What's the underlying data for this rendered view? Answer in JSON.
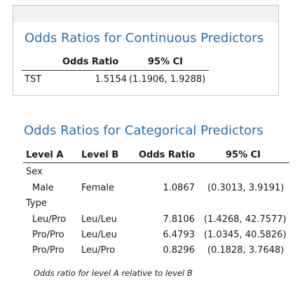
{
  "continuous": {
    "title": "Odds Ratios for Continuous Predictors",
    "headers": [
      "Odds Ratio",
      "95% CI"
    ],
    "rows": [
      {
        "predictor": "TST",
        "odds_ratio": "1.5154",
        "ci": "(1.1906, 1.9288)"
      }
    ]
  },
  "categorical": {
    "title": "Odds Ratios for Categorical Predictors",
    "headers": [
      "Level A",
      "Level B",
      "Odds Ratio",
      "95% CI"
    ],
    "groups": [
      {
        "name": "Sex",
        "rows": [
          {
            "level_a": "Male",
            "level_b": "Female",
            "odds_ratio": "1.0867",
            "ci": "(0.3013, 3.9191)"
          }
        ]
      },
      {
        "name": "Type",
        "rows": [
          {
            "level_a": "Leu/Pro",
            "level_b": "Leu/Leu",
            "odds_ratio": "7.8106",
            "ci": "(1.4268, 42.7577)"
          },
          {
            "level_a": "Pro/Pro",
            "level_b": "Leu/Leu",
            "odds_ratio": "6.4793",
            "ci": "(1.0345, 40.5826)"
          },
          {
            "level_a": "Pro/Pro",
            "level_b": "Leu/Pro",
            "odds_ratio": "0.8296",
            "ci": "(0.1828, 3.7648)"
          }
        ]
      }
    ],
    "footnote": "Odds ratio for level A relative to level B"
  },
  "colors": {
    "title": "#2b6ea8",
    "panel_border": "#c8c8c8",
    "panel_top": "#f2f2f2"
  }
}
